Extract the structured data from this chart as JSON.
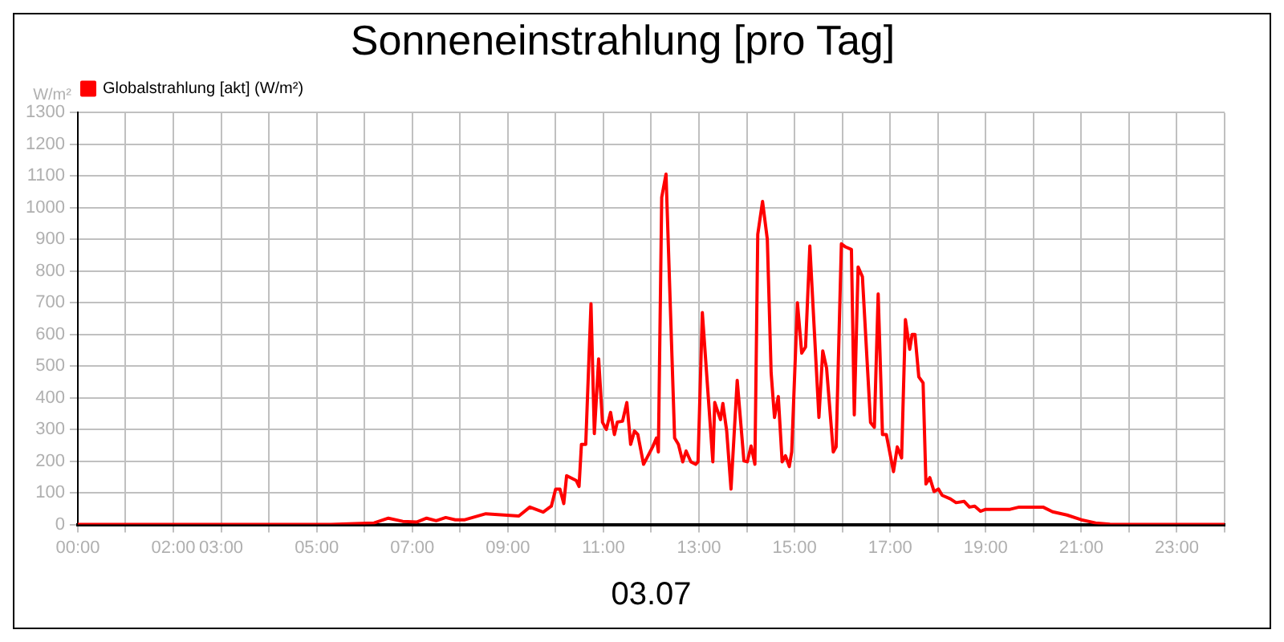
{
  "chart_data": {
    "type": "line",
    "title": "Sonneneinstrahlung [pro Tag]",
    "xlabel": "03.07",
    "ylabel": "W/m²",
    "x": [
      0,
      5.3,
      5.8,
      6.2,
      6.5,
      6.8,
      7.1,
      7.3,
      7.5,
      7.7,
      7.9,
      8.1,
      8.54,
      9.23,
      9.46,
      9.74,
      9.91,
      10.0,
      10.09,
      10.17,
      10.23,
      10.43,
      10.49,
      10.54,
      10.63,
      10.74,
      10.81,
      10.9,
      10.98,
      11.06,
      11.15,
      11.23,
      11.29,
      11.4,
      11.49,
      11.57,
      11.65,
      11.72,
      11.84,
      12.03,
      12.11,
      12.15,
      12.22,
      12.31,
      12.49,
      12.57,
      12.66,
      12.73,
      12.83,
      12.93,
      12.98,
      13.07,
      13.29,
      13.33,
      13.45,
      13.5,
      13.58,
      13.67,
      13.8,
      13.94,
      14.01,
      14.09,
      14.17,
      14.23,
      14.33,
      14.43,
      14.51,
      14.58,
      14.66,
      14.74,
      14.81,
      14.89,
      14.94,
      15.06,
      15.15,
      15.23,
      15.32,
      15.51,
      15.59,
      15.67,
      15.81,
      15.87,
      15.98,
      16.07,
      16.19,
      16.25,
      16.33,
      16.42,
      16.59,
      16.67,
      16.75,
      16.84,
      16.92,
      17.07,
      17.15,
      17.24,
      17.32,
      17.41,
      17.46,
      17.52,
      17.6,
      17.69,
      17.75,
      17.83,
      17.92,
      18.01,
      18.09,
      18.26,
      18.38,
      18.55,
      18.66,
      18.77,
      18.89,
      19.0,
      19.51,
      19.7,
      20.2,
      20.4,
      20.7,
      21.0,
      21.3,
      21.6,
      22,
      24
    ],
    "series": [
      {
        "name": "Globalstrahlung [akt] (W/m²)",
        "color": "#ff0000",
        "values": [
          0,
          0,
          3,
          5,
          20,
          10,
          8,
          20,
          12,
          22,
          15,
          15,
          34,
          27,
          55,
          39,
          58,
          112,
          112,
          66,
          154,
          139,
          120,
          253,
          253,
          697,
          287,
          523,
          323,
          300,
          354,
          284,
          323,
          326,
          385,
          253,
          295,
          284,
          190,
          245,
          273,
          229,
          1033,
          1106,
          273,
          253,
          198,
          232,
          198,
          190,
          198,
          669,
          198,
          385,
          331,
          382,
          295,
          112,
          455,
          201,
          198,
          248,
          190,
          916,
          1020,
          900,
          479,
          338,
          404,
          198,
          217,
          183,
          229,
          700,
          541,
          560,
          879,
          338,
          548,
          494,
          229,
          245,
          886,
          876,
          868,
          346,
          813,
          782,
          322,
          307,
          728,
          284,
          284,
          167,
          245,
          210,
          647,
          553,
          600,
          600,
          466,
          447,
          128,
          148,
          104,
          112,
          92,
          81,
          69,
          73,
          55,
          58,
          42,
          48,
          48,
          55,
          55,
          40,
          30,
          15,
          5,
          1,
          0,
          0
        ]
      }
    ],
    "xlim": [
      0,
      24
    ],
    "xticks": [
      {
        "value": 0,
        "label": "00:00"
      },
      {
        "value": 1,
        "label": null
      },
      {
        "value": 2,
        "label": "02:00"
      },
      {
        "value": 3,
        "label": "03:00"
      },
      {
        "value": 4,
        "label": null
      },
      {
        "value": 5,
        "label": "05:00"
      },
      {
        "value": 6,
        "label": null
      },
      {
        "value": 7,
        "label": "07:00"
      },
      {
        "value": 8,
        "label": null
      },
      {
        "value": 9,
        "label": "09:00"
      },
      {
        "value": 10,
        "label": null
      },
      {
        "value": 11,
        "label": "11:00"
      },
      {
        "value": 12,
        "label": null
      },
      {
        "value": 13,
        "label": "13:00"
      },
      {
        "value": 14,
        "label": null
      },
      {
        "value": 15,
        "label": "15:00"
      },
      {
        "value": 16,
        "label": null
      },
      {
        "value": 17,
        "label": "17:00"
      },
      {
        "value": 18,
        "label": null
      },
      {
        "value": 19,
        "label": "19:00"
      },
      {
        "value": 20,
        "label": null
      },
      {
        "value": 21,
        "label": "21:00"
      },
      {
        "value": 22,
        "label": null
      },
      {
        "value": 23,
        "label": "23:00"
      },
      {
        "value": 24,
        "label": null
      }
    ],
    "ylim": [
      0,
      1300
    ],
    "yticks": [
      0,
      100,
      200,
      300,
      400,
      500,
      600,
      700,
      800,
      900,
      1000,
      1100,
      1200,
      1300
    ],
    "grid": true,
    "legend": "top left",
    "marker": "none",
    "line_style": "solid"
  }
}
